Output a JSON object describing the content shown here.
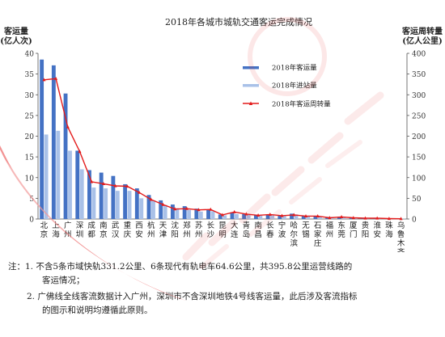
{
  "chart_data": {
    "type": "bar",
    "title": "2018年各城市城轨交通客运完成情况",
    "ylabel_left": [
      "客运量",
      "(亿人次)"
    ],
    "ylabel_right": [
      "客运周转量",
      "(亿人公里)"
    ],
    "ylim_left": [
      0,
      40
    ],
    "ylim_right": [
      0,
      400
    ],
    "yticks_left": [
      0,
      5,
      10,
      15,
      20,
      25,
      30,
      35,
      40
    ],
    "yticks_right": [
      0,
      50,
      100,
      150,
      200,
      250,
      300,
      350,
      400
    ],
    "categories": [
      "北京",
      "上海",
      "广州",
      "深圳",
      "成都",
      "南京",
      "武汉",
      "重庆",
      "西安",
      "杭州",
      "天津",
      "沈阳",
      "郑州",
      "苏州",
      "长沙",
      "昆明",
      "大连",
      "青岛",
      "南昌",
      "长春",
      "宁波",
      "哈尔滨",
      "无锡",
      "石家庄",
      "福州",
      "东莞",
      "厦门",
      "贵阳",
      "淮安",
      "珠海",
      "乌鲁木齐"
    ],
    "categories_rows": [
      [
        "北",
        "京"
      ],
      [
        "上",
        "海"
      ],
      [
        "广",
        "州"
      ],
      [
        "深",
        "圳"
      ],
      [
        "成",
        "都"
      ],
      [
        "南",
        "京"
      ],
      [
        "武",
        "汉"
      ],
      [
        "重",
        "庆"
      ],
      [
        "西",
        "安"
      ],
      [
        "杭",
        "州"
      ],
      [
        "天",
        "津"
      ],
      [
        "沈",
        "阳"
      ],
      [
        "郑",
        "州"
      ],
      [
        "苏",
        "州"
      ],
      [
        "长",
        "沙"
      ],
      [
        "昆",
        "明"
      ],
      [
        "大",
        "连"
      ],
      [
        "青",
        "岛"
      ],
      [
        "南",
        "昌"
      ],
      [
        "长",
        "春"
      ],
      [
        "宁",
        "波"
      ],
      [
        "哈",
        "尔",
        "滨"
      ],
      [
        "无",
        "锡"
      ],
      [
        "石",
        "家",
        "庄"
      ],
      [
        "福",
        "州"
      ],
      [
        "东",
        "莞"
      ],
      [
        "厦",
        "门"
      ],
      [
        "贵",
        "阳"
      ],
      [
        "淮",
        "安"
      ],
      [
        "珠",
        "海"
      ],
      [
        "乌",
        "鲁",
        "木",
        "齐"
      ]
    ],
    "series": [
      {
        "name": "2018年客运量",
        "axis": "left",
        "color": "#4472c4",
        "values": [
          38.5,
          37.1,
          30.3,
          16.5,
          11.8,
          11.2,
          10.4,
          8.4,
          7.4,
          5.8,
          4.5,
          3.5,
          3.1,
          2.5,
          2.3,
          1.1,
          1.6,
          1.2,
          1.0,
          1.0,
          0.9,
          1.3,
          0.8,
          0.7,
          0.5,
          0.5,
          0.3,
          0.2,
          0.2,
          0.1,
          0.05
        ]
      },
      {
        "name": "2018年进站量",
        "axis": "left",
        "color": "#a9c1e8",
        "values": [
          20.4,
          21.3,
          16.5,
          12.0,
          7.6,
          7.4,
          6.8,
          6.8,
          5.0,
          4.5,
          3.4,
          2.6,
          2.2,
          1.8,
          1.9,
          0.9,
          1.2,
          1.0,
          0.8,
          0.9,
          0.7,
          1.1,
          0.6,
          0.6,
          0.5,
          0.5,
          0.3,
          0.2,
          0.2,
          0.1,
          0.05
        ]
      },
      {
        "name": "2018年客运周转量",
        "axis": "right",
        "color": "#e31b1b",
        "values": [
          336,
          339,
          222,
          163,
          90,
          85,
          80,
          79,
          64,
          47,
          35,
          24,
          25,
          22,
          23,
          10,
          17,
          12,
          9,
          11,
          8,
          10,
          7,
          7,
          3,
          5,
          3,
          2,
          2,
          1,
          0.5
        ]
      }
    ]
  },
  "notes": [
    "注：1. 不含5条市域快轨331.2公里、6条现代有轨电车64.6公里，共395.8公里运营线路的",
    "客运情况；",
    "2. 广佛线全线客流数据计入广州，深圳市不含深圳地铁4号线客运量，此后涉及客流指标",
    "的图示和说明均遵循此原则。"
  ],
  "colors": {
    "watermark": "#e83a3a"
  }
}
